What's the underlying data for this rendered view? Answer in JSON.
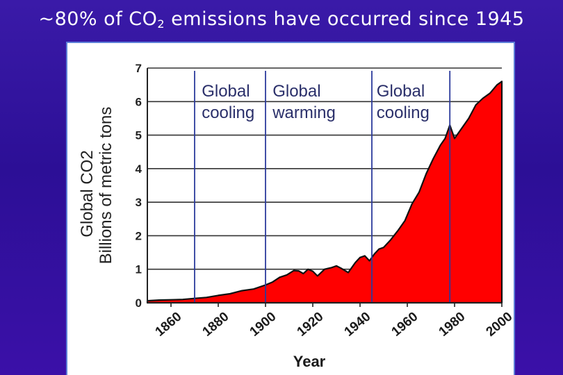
{
  "slide": {
    "title_main": "~80% of CO",
    "title_sub": "2",
    "title_rest": " emissions have occurred since 1945"
  },
  "chart_data": {
    "type": "area",
    "ylabel_line1": "Global CO2",
    "ylabel_line2": "Billions of metric tons",
    "xlabel": "Year",
    "ylim": [
      0,
      7
    ],
    "xlim": [
      1850,
      2000
    ],
    "y_ticks": [
      "0",
      "1",
      "2",
      "3",
      "4",
      "5",
      "6",
      "7"
    ],
    "x_ticks": [
      "1860",
      "1880",
      "1900",
      "1920",
      "1940",
      "1960",
      "1980",
      "2000"
    ],
    "grid": true,
    "fill_color": "#ff0000",
    "line_color": "#111111",
    "dividers": [
      1870,
      1900,
      1945,
      1978
    ],
    "annotations": [
      {
        "line1": "Global",
        "line2": "cooling",
        "x": 1873
      },
      {
        "line1": "Global",
        "line2": "warming",
        "x": 1903
      },
      {
        "line1": "Global",
        "line2": "cooling",
        "x": 1947
      }
    ],
    "x": [
      1850,
      1855,
      1860,
      1865,
      1870,
      1875,
      1880,
      1885,
      1890,
      1895,
      1900,
      1903,
      1906,
      1909,
      1912,
      1914,
      1916,
      1918,
      1920,
      1922,
      1925,
      1928,
      1930,
      1932,
      1935,
      1938,
      1940,
      1942,
      1944,
      1946,
      1948,
      1950,
      1953,
      1956,
      1959,
      1962,
      1965,
      1968,
      1971,
      1974,
      1976,
      1978,
      1980,
      1983,
      1986,
      1989,
      1992,
      1995,
      1998,
      2000
    ],
    "values": [
      0.06,
      0.08,
      0.09,
      0.1,
      0.13,
      0.16,
      0.22,
      0.27,
      0.36,
      0.41,
      0.53,
      0.62,
      0.76,
      0.83,
      0.96,
      0.95,
      0.87,
      1.0,
      0.94,
      0.8,
      1.0,
      1.05,
      1.1,
      1.03,
      0.9,
      1.2,
      1.35,
      1.4,
      1.25,
      1.45,
      1.6,
      1.65,
      1.88,
      2.15,
      2.45,
      2.95,
      3.3,
      3.85,
      4.3,
      4.7,
      4.9,
      5.3,
      4.9,
      5.2,
      5.5,
      5.9,
      6.1,
      6.25,
      6.5,
      6.6
    ]
  }
}
